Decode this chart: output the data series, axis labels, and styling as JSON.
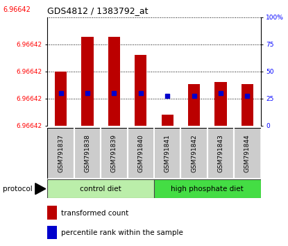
{
  "title": "GDS4812 / 1383792_at",
  "top_label": "6.96642",
  "samples": [
    "GSM791837",
    "GSM791838",
    "GSM791839",
    "GSM791840",
    "GSM791841",
    "GSM791842",
    "GSM791843",
    "GSM791844"
  ],
  "bar_heights_pct": [
    50,
    82,
    82,
    65,
    10,
    38,
    40,
    38
  ],
  "pct_ranks": [
    30,
    30,
    30,
    30,
    27,
    27,
    30,
    27
  ],
  "ytick_labels": [
    "6.96642",
    "6.96642",
    "6.96642",
    "6.96642"
  ],
  "ytick_pcts": [
    0,
    25,
    50,
    75
  ],
  "right_tick_vals": [
    0,
    25,
    50,
    75,
    100
  ],
  "right_tick_labels": [
    "0",
    "25",
    "50",
    "75",
    "100%"
  ],
  "bar_color": "#BB0000",
  "pct_color": "#0000CC",
  "ctrl_color_light": "#BBEEAA",
  "hp_color_bright": "#44DD44",
  "sample_bg": "#CCCCCC",
  "n_ctrl": 4,
  "n_hp": 4,
  "bar_width": 0.45
}
